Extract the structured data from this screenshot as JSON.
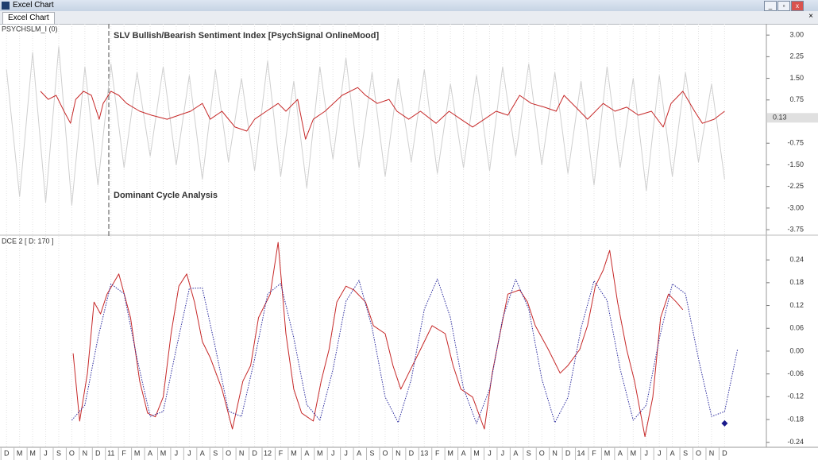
{
  "window": {
    "title": "Excel Chart",
    "tab": "Excel Chart"
  },
  "chart_data": [
    {
      "type": "line",
      "label": "PSYCHSLM_I (0)",
      "title": "SLV Bullish/Bearish Sentiment Index [PsychSignal OnlineMood]",
      "annotation": "Dominant Cycle Analysis",
      "current_value": 0.13,
      "xlim": [
        -0.5,
        58.2
      ],
      "ylim": [
        -3.94,
        3.39
      ],
      "yticks": [
        {
          "value": 3,
          "label": "3.00"
        },
        {
          "value": 2.25,
          "label": "2.25"
        },
        {
          "value": 1.5,
          "label": "1.50"
        },
        {
          "value": 0.75,
          "label": "0.75"
        },
        {
          "value": -0.75,
          "label": "-0.75"
        },
        {
          "value": -1.5,
          "label": "-1.50"
        },
        {
          "value": -2.25,
          "label": "-2.25"
        },
        {
          "value": -3,
          "label": "-3.00"
        },
        {
          "value": -3.75,
          "label": "-3.75"
        }
      ],
      "series": [
        {
          "color": "#cfcfcf",
          "x": [
            0,
            1,
            2,
            3,
            4,
            5,
            6,
            7,
            8,
            9,
            10,
            11,
            12,
            13,
            14,
            15,
            16,
            17,
            18,
            19,
            20,
            21,
            22,
            23,
            24,
            25,
            26,
            27,
            28,
            29,
            30,
            31,
            32,
            33,
            34,
            35,
            36,
            37,
            38,
            39,
            40,
            41,
            42,
            43,
            44,
            45,
            46,
            47,
            48,
            49,
            50,
            51,
            52,
            53,
            54,
            55
          ],
          "values": [
            1.8,
            -2.6,
            2.4,
            -2.8,
            2.6,
            -2.9,
            1.9,
            -2.2,
            2.0,
            -1.6,
            1.7,
            -1.2,
            1.9,
            -1.5,
            1.6,
            -2.0,
            1.8,
            -1.4,
            1.5,
            -1.7,
            2.1,
            -1.9,
            1.4,
            -2.3,
            1.9,
            -1.3,
            2.2,
            -1.6,
            1.7,
            -1.9,
            1.5,
            -1.4,
            1.8,
            -1.8,
            1.3,
            -1.6,
            1.6,
            -1.7,
            1.9,
            -1.2,
            2.0,
            -1.5,
            1.7,
            -1.8,
            1.4,
            -2.2,
            1.9,
            -1.6,
            1.5,
            -2.4,
            1.6,
            -1.9,
            1.7,
            -1.4,
            1.3,
            -2.0
          ]
        },
        {
          "color": "#c62828",
          "x": [
            2.6,
            3.2,
            3.8,
            4.4,
            4.9,
            5.3,
            5.9,
            6.5,
            7.1,
            7.4,
            8.0,
            8.6,
            9.2,
            10.2,
            11.1,
            12.3,
            13.2,
            14.1,
            15.0,
            15.6,
            16.5,
            17.5,
            18.4,
            19.0,
            19.9,
            20.8,
            21.4,
            22.3,
            22.9,
            23.5,
            24.4,
            25.7,
            26.9,
            27.5,
            28.4,
            29.3,
            29.9,
            30.8,
            31.7,
            32.9,
            33.9,
            34.8,
            35.7,
            36.6,
            37.5,
            38.4,
            39.3,
            40.2,
            41.2,
            42.1,
            42.7,
            43.6,
            44.5,
            45.7,
            46.6,
            47.5,
            48.4,
            49.4,
            50.3,
            50.9,
            51.8,
            52.7,
            53.3,
            54.2,
            55.0
          ],
          "values": [
            1.05,
            0.77,
            0.91,
            0.36,
            -0.06,
            0.77,
            1.05,
            0.91,
            0.08,
            0.63,
            1.05,
            0.91,
            0.63,
            0.36,
            0.22,
            0.08,
            0.22,
            0.36,
            0.63,
            0.08,
            0.36,
            -0.19,
            -0.33,
            0.08,
            0.36,
            0.63,
            0.36,
            0.77,
            -0.61,
            0.08,
            0.36,
            0.91,
            1.18,
            0.91,
            0.63,
            0.77,
            0.36,
            0.08,
            0.36,
            -0.06,
            0.36,
            0.08,
            -0.19,
            0.08,
            0.36,
            0.22,
            0.91,
            0.63,
            0.5,
            0.36,
            0.91,
            0.5,
            0.08,
            0.63,
            0.36,
            0.5,
            0.22,
            0.36,
            -0.19,
            0.63,
            1.05,
            0.36,
            -0.06,
            0.08,
            0.36
          ]
        }
      ]
    },
    {
      "type": "line",
      "label": "DCE 2 [ D: 170 ]",
      "xlim": [
        -0.5,
        58.2
      ],
      "ylim": [
        -0.253,
        0.303
      ],
      "yticks": [
        0.24,
        0.18,
        0.12,
        0.06,
        {
          "value": 0,
          "label": "0.00"
        },
        -0.06,
        -0.12,
        -0.18,
        -0.24
      ],
      "xticks": [
        {
          "value": 0,
          "label": "D"
        },
        {
          "value": 1,
          "label": "M"
        },
        {
          "value": 2,
          "label": "M"
        },
        {
          "value": 3,
          "label": "J"
        },
        {
          "value": 4,
          "label": "S"
        },
        {
          "value": 5,
          "label": "O"
        },
        {
          "value": 6,
          "label": "N"
        },
        {
          "value": 7,
          "label": "D"
        },
        {
          "value": 8,
          "label": "11"
        },
        {
          "value": 9,
          "label": "F"
        },
        {
          "value": 10,
          "label": "M"
        },
        {
          "value": 11,
          "label": "A"
        },
        {
          "value": 12,
          "label": "M"
        },
        {
          "value": 13,
          "label": "J"
        },
        {
          "value": 14,
          "label": "J"
        },
        {
          "value": 15,
          "label": "A"
        },
        {
          "value": 16,
          "label": "S"
        },
        {
          "value": 17,
          "label": "O"
        },
        {
          "value": 18,
          "label": "N"
        },
        {
          "value": 19,
          "label": "D"
        },
        {
          "value": 20,
          "label": "12"
        },
        {
          "value": 21,
          "label": "F"
        },
        {
          "value": 22,
          "label": "M"
        },
        {
          "value": 23,
          "label": "A"
        },
        {
          "value": 24,
          "label": "M"
        },
        {
          "value": 25,
          "label": "J"
        },
        {
          "value": 26,
          "label": "J"
        },
        {
          "value": 27,
          "label": "A"
        },
        {
          "value": 28,
          "label": "S"
        },
        {
          "value": 29,
          "label": "O"
        },
        {
          "value": 30,
          "label": "N"
        },
        {
          "value": 31,
          "label": "D"
        },
        {
          "value": 32,
          "label": "13"
        },
        {
          "value": 33,
          "label": "F"
        },
        {
          "value": 34,
          "label": "M"
        },
        {
          "value": 35,
          "label": "A"
        },
        {
          "value": 36,
          "label": "M"
        },
        {
          "value": 37,
          "label": "J"
        },
        {
          "value": 38,
          "label": "J"
        },
        {
          "value": 39,
          "label": "A"
        },
        {
          "value": 40,
          "label": "S"
        },
        {
          "value": 41,
          "label": "O"
        },
        {
          "value": 42,
          "label": "N"
        },
        {
          "value": 43,
          "label": "D"
        },
        {
          "value": 44,
          "label": "14"
        },
        {
          "value": 45,
          "label": "F"
        },
        {
          "value": 46,
          "label": "M"
        },
        {
          "value": 47,
          "label": "A"
        },
        {
          "value": 48,
          "label": "M"
        },
        {
          "value": 49,
          "label": "J"
        },
        {
          "value": 50,
          "label": "J"
        },
        {
          "value": 51,
          "label": "A"
        },
        {
          "value": 52,
          "label": "S"
        },
        {
          "value": 53,
          "label": "O"
        },
        {
          "value": 54,
          "label": "N"
        },
        {
          "value": 55,
          "label": "D"
        }
      ],
      "series": [
        {
          "color": "#c62828",
          "x": [
            5.1,
            5.6,
            6.2,
            6.7,
            7.2,
            7.7,
            8.6,
            9.5,
            10.2,
            10.8,
            11.4,
            12.0,
            12.6,
            13.2,
            13.8,
            14.4,
            15.0,
            15.6,
            16.5,
            17.3,
            18.1,
            18.7,
            19.3,
            20.2,
            20.8,
            21.4,
            22.0,
            22.6,
            23.5,
            24.1,
            24.7,
            25.3,
            26.0,
            26.6,
            27.5,
            28.1,
            29.0,
            29.6,
            30.2,
            30.8,
            31.7,
            32.6,
            33.6,
            34.2,
            34.8,
            35.7,
            36.6,
            37.2,
            37.8,
            38.4,
            39.3,
            39.9,
            40.5,
            41.5,
            42.4,
            43.0,
            43.9,
            44.5,
            45.1,
            45.7,
            46.2,
            46.8,
            47.5,
            48.1,
            48.9,
            49.5,
            50.1,
            50.7,
            51.3,
            51.8
          ],
          "values": [
            -0.006,
            -0.184,
            -0.058,
            0.129,
            0.098,
            0.15,
            0.203,
            0.088,
            -0.079,
            -0.163,
            -0.173,
            -0.121,
            0.046,
            0.171,
            0.203,
            0.129,
            0.025,
            -0.017,
            -0.1,
            -0.205,
            -0.079,
            -0.038,
            0.088,
            0.15,
            0.286,
            0.046,
            -0.1,
            -0.163,
            -0.184,
            -0.079,
            0.004,
            0.129,
            0.171,
            0.161,
            0.129,
            0.067,
            0.046,
            -0.038,
            -0.1,
            -0.058,
            0.004,
            0.067,
            0.046,
            -0.038,
            -0.1,
            -0.121,
            -0.205,
            -0.058,
            0.046,
            0.15,
            0.161,
            0.129,
            0.067,
            0.004,
            -0.058,
            -0.038,
            0.004,
            0.067,
            0.171,
            0.213,
            0.265,
            0.129,
            0.004,
            -0.079,
            -0.225,
            -0.121,
            0.088,
            0.15,
            0.129,
            0.109
          ]
        },
        {
          "color": "#2b2b9e",
          "style": "dotted",
          "x": [
            5,
            6,
            7,
            8,
            9,
            10,
            11,
            12,
            13,
            14,
            15,
            16,
            17,
            18,
            19,
            20,
            21,
            22,
            23,
            24,
            25,
            26,
            27,
            28,
            29,
            30,
            31,
            32,
            33,
            34,
            35,
            36,
            37,
            38,
            39,
            40,
            41,
            42,
            43,
            44,
            45,
            46,
            47,
            48,
            49,
            50,
            51,
            52,
            53,
            54,
            55,
            56
          ],
          "values": [
            -0.182,
            -0.142,
            0.034,
            0.177,
            0.151,
            -0.02,
            -0.172,
            -0.159,
            0.006,
            0.165,
            0.166,
            0.008,
            -0.158,
            -0.172,
            -0.021,
            0.15,
            0.178,
            0.035,
            -0.141,
            -0.182,
            -0.049,
            0.131,
            0.186,
            0.062,
            -0.121,
            -0.188,
            -0.075,
            0.11,
            0.19,
            0.088,
            -0.098,
            -0.19,
            -0.1,
            0.086,
            0.189,
            0.111,
            -0.073,
            -0.188,
            -0.122,
            0.06,
            0.185,
            0.133,
            -0.047,
            -0.182,
            -0.142,
            0.033,
            0.177,
            0.151,
            -0.02,
            -0.172,
            -0.159,
            0.006
          ]
        }
      ],
      "endpoint": {
        "x": 55,
        "y": -0.19,
        "color": "#1a1a8c"
      }
    }
  ]
}
